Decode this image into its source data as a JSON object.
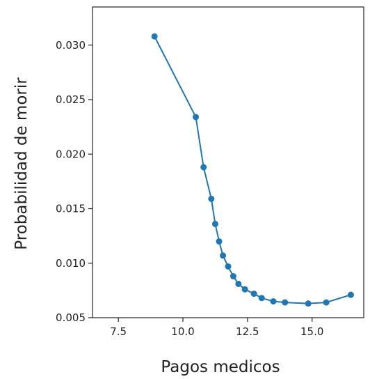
{
  "chart_data": {
    "type": "line",
    "title": "",
    "xlabel": "Pagos medicos",
    "ylabel": "Probabilidad de morir",
    "xlim": [
      6.5,
      17.0
    ],
    "ylim": [
      0.005,
      0.0335
    ],
    "x_ticks": [
      7.5,
      10.0,
      12.5,
      15.0
    ],
    "x_tick_labels": [
      "7.5",
      "10.0",
      "12.5",
      "15.0"
    ],
    "y_ticks": [
      0.005,
      0.01,
      0.015,
      0.02,
      0.025,
      0.03
    ],
    "y_tick_labels": [
      "0.005",
      "0.010",
      "0.015",
      "0.020",
      "0.025",
      "0.030"
    ],
    "grid": false,
    "legend": "none",
    "series": [
      {
        "color": "#1f77b4",
        "marker": "circle",
        "x": [
          8.9,
          10.5,
          10.8,
          11.1,
          11.25,
          11.4,
          11.55,
          11.75,
          11.95,
          12.15,
          12.4,
          12.75,
          13.05,
          13.5,
          13.95,
          14.85,
          15.55,
          16.5
        ],
        "y": [
          0.0308,
          0.0234,
          0.0188,
          0.0159,
          0.0136,
          0.012,
          0.0107,
          0.0097,
          0.0088,
          0.0081,
          0.0076,
          0.0072,
          0.0068,
          0.0065,
          0.0064,
          0.0063,
          0.0064,
          0.0071
        ]
      }
    ]
  }
}
